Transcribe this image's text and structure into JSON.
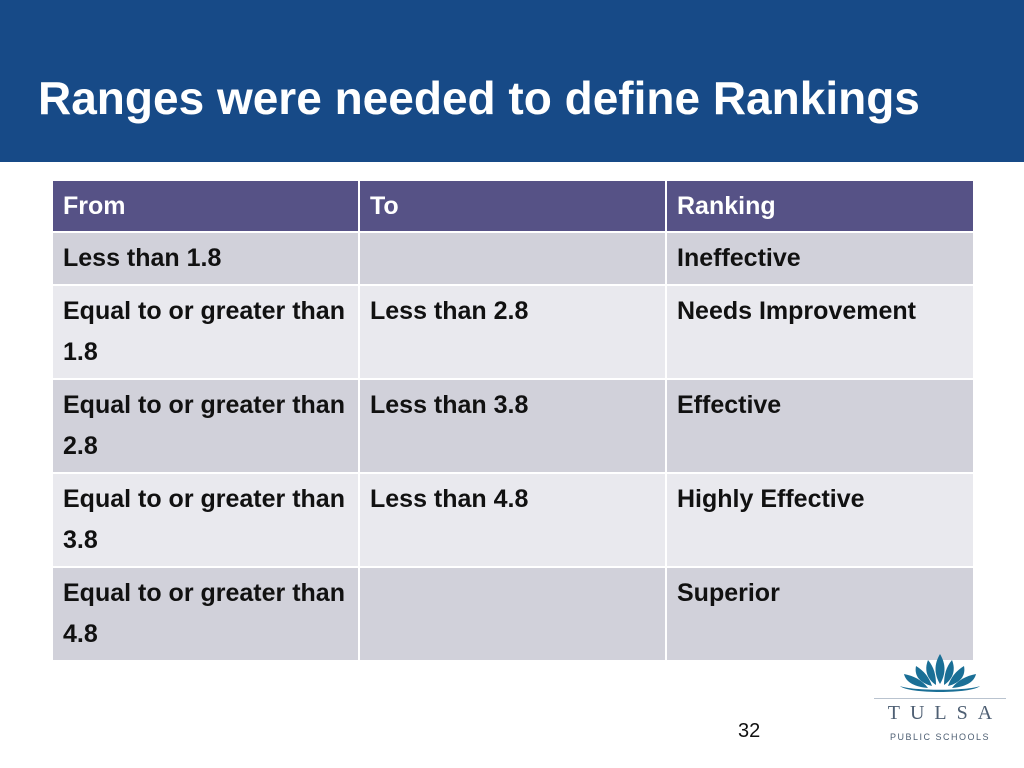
{
  "slide": {
    "title": "Ranges were needed to define Rankings",
    "page_number": "32"
  },
  "table": {
    "headers": [
      "From",
      "To",
      "Ranking"
    ],
    "rows": [
      {
        "from": "Less than 1.8",
        "to": "",
        "ranking": "Ineffective"
      },
      {
        "from": "Equal to or greater than 1.8",
        "to": "Less than 2.8",
        "ranking": "Needs Improvement"
      },
      {
        "from": "Equal to or greater than 2.8",
        "to": "Less than 3.8",
        "ranking": "Effective"
      },
      {
        "from": "Equal to or greater than 3.8",
        "to": "Less than 4.8",
        "ranking": "Highly Effective"
      },
      {
        "from": "Equal to or greater than 4.8",
        "to": "",
        "ranking": "Superior"
      }
    ]
  },
  "logo": {
    "name": "TULSA",
    "subtitle": "PUBLIC SCHOOLS",
    "icon": "lotus-icon",
    "colors": {
      "header_bar": "#174a87",
      "table_header": "#565286",
      "row_dark": "#d1d1da",
      "row_light": "#e9e9ee",
      "logo_mark": "#1a6f96"
    }
  }
}
